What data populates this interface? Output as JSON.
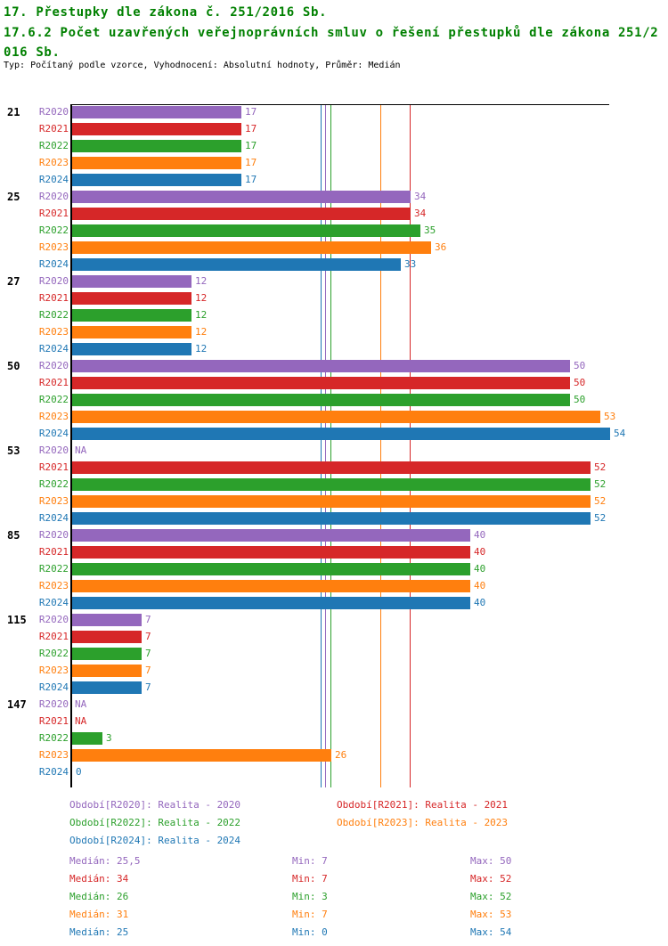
{
  "header": {
    "title": "17. Přestupky dle zákona č. 251/2016 Sb.",
    "subtitle": "17.6.2 Počet uzavřených veřejnoprávních smluv o řešení přestupků dle zákona 251/2016 Sb.",
    "meta": "Typ: Počítaný podle vzorce, Vyhodnocení: Absolutní hodnoty, Průměr: Medián"
  },
  "chart_data": {
    "type": "bar",
    "orientation": "horizontal",
    "xlim": [
      0,
      54
    ],
    "na_label": "NA",
    "grid": false,
    "legend_position": "bottom",
    "groups": [
      "21",
      "25",
      "27",
      "50",
      "53",
      "85",
      "115",
      "147"
    ],
    "series": [
      {
        "name": "R2020",
        "color": "#9467bd",
        "legend": "Období[R2020]: Realita - 2020",
        "values": [
          17,
          34,
          12,
          50,
          null,
          40,
          7,
          null
        ],
        "median": 25.5,
        "stats": {
          "median": "Medián: 25,5",
          "min": "Min: 7",
          "max": "Max: 50"
        }
      },
      {
        "name": "R2021",
        "color": "#d62728",
        "legend": "Období[R2021]: Realita - 2021",
        "values": [
          17,
          34,
          12,
          50,
          52,
          40,
          7,
          null
        ],
        "median": 34,
        "stats": {
          "median": "Medián: 34",
          "min": "Min: 7",
          "max": "Max: 52"
        }
      },
      {
        "name": "R2022",
        "color": "#2ca02c",
        "legend": "Období[R2022]: Realita - 2022",
        "values": [
          17,
          35,
          12,
          50,
          52,
          40,
          7,
          3
        ],
        "median": 26,
        "stats": {
          "median": "Medián: 26",
          "min": "Min: 3",
          "max": "Max: 52"
        }
      },
      {
        "name": "R2023",
        "color": "#ff7f0e",
        "legend": "Období[R2023]: Realita - 2023",
        "values": [
          17,
          36,
          12,
          53,
          52,
          40,
          7,
          26
        ],
        "median": 31,
        "stats": {
          "median": "Medián: 31",
          "min": "Min: 7",
          "max": "Max: 53"
        }
      },
      {
        "name": "R2024",
        "color": "#1f77b4",
        "legend": "Období[R2024]: Realita - 2024",
        "values": [
          17,
          33,
          12,
          54,
          52,
          40,
          7,
          0
        ],
        "median": 25,
        "stats": {
          "median": "Medián: 25",
          "min": "Min: 0",
          "max": "Max: 54"
        }
      }
    ]
  }
}
